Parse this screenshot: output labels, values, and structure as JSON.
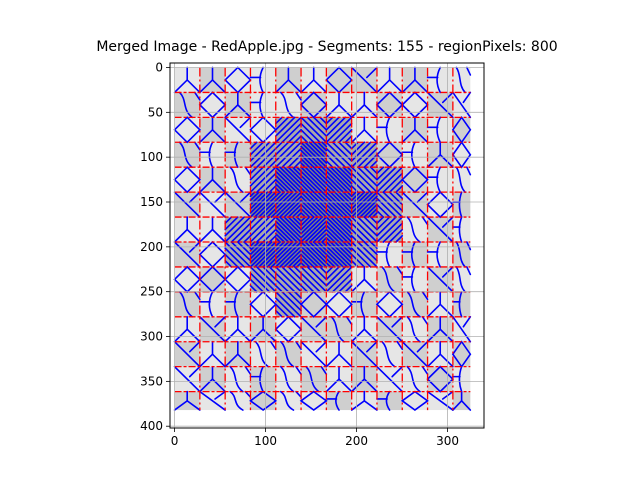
{
  "chart_data": {
    "type": "heatmap",
    "title": "Merged Image - RedApple.jpg - Segments: 155 - regionPixels: 800",
    "xlim": [
      -5,
      340
    ],
    "ylim": [
      402,
      -5
    ],
    "x_ticks": [
      0,
      100,
      200,
      300
    ],
    "y_ticks": [
      0,
      50,
      100,
      150,
      200,
      250,
      300,
      350,
      400
    ],
    "grid": true,
    "image_extent": {
      "x": [
        0,
        325
      ],
      "y": [
        0,
        382
      ]
    },
    "cell_width": 27.8,
    "cell_height": 27.8,
    "columns": 12,
    "rows": 14,
    "grid_line_x": [
      0,
      27.8,
      55.6,
      83.4,
      111.2,
      139,
      166.8,
      194.6,
      222.4,
      250.2,
      278,
      305.8,
      325
    ],
    "grid_line_y": [
      0,
      27.8,
      55.6,
      83.4,
      111.2,
      139,
      166.8,
      194.6,
      222.4,
      250.2,
      278,
      305.8,
      333.6,
      361.4,
      382
    ],
    "shade_levels": [
      "#e6e6e6",
      "#cfcfcf",
      "#a9a9a9",
      "#7f7f7f"
    ],
    "cell_shade": [
      [
        0,
        1,
        0,
        0,
        1,
        0,
        1,
        1,
        0,
        1,
        0,
        0
      ],
      [
        1,
        0,
        1,
        0,
        0,
        1,
        0,
        0,
        1,
        0,
        1,
        0
      ],
      [
        0,
        1,
        0,
        0,
        2,
        2,
        2,
        0,
        0,
        1,
        0,
        1
      ],
      [
        1,
        0,
        1,
        2,
        2,
        3,
        2,
        2,
        1,
        0,
        1,
        0
      ],
      [
        0,
        1,
        0,
        2,
        3,
        3,
        3,
        2,
        2,
        1,
        0,
        0
      ],
      [
        1,
        0,
        1,
        3,
        3,
        3,
        3,
        3,
        2,
        1,
        0,
        1
      ],
      [
        0,
        0,
        2,
        2,
        3,
        3,
        3,
        2,
        2,
        0,
        1,
        0
      ],
      [
        1,
        0,
        2,
        3,
        3,
        3,
        3,
        2,
        0,
        1,
        0,
        1
      ],
      [
        0,
        1,
        0,
        2,
        2,
        2,
        2,
        0,
        1,
        0,
        1,
        0
      ],
      [
        1,
        0,
        1,
        0,
        2,
        1,
        0,
        1,
        0,
        1,
        0,
        1
      ],
      [
        0,
        1,
        0,
        1,
        0,
        1,
        1,
        0,
        1,
        0,
        1,
        0
      ],
      [
        1,
        0,
        1,
        0,
        1,
        0,
        0,
        1,
        0,
        1,
        0,
        1
      ],
      [
        0,
        1,
        0,
        1,
        0,
        1,
        0,
        1,
        0,
        0,
        1,
        0
      ],
      [
        1,
        0,
        0,
        1,
        0,
        0,
        1,
        0,
        1,
        0,
        0,
        1
      ]
    ],
    "segment_color": "#0000ff",
    "boundary_color": "#ff0000"
  }
}
